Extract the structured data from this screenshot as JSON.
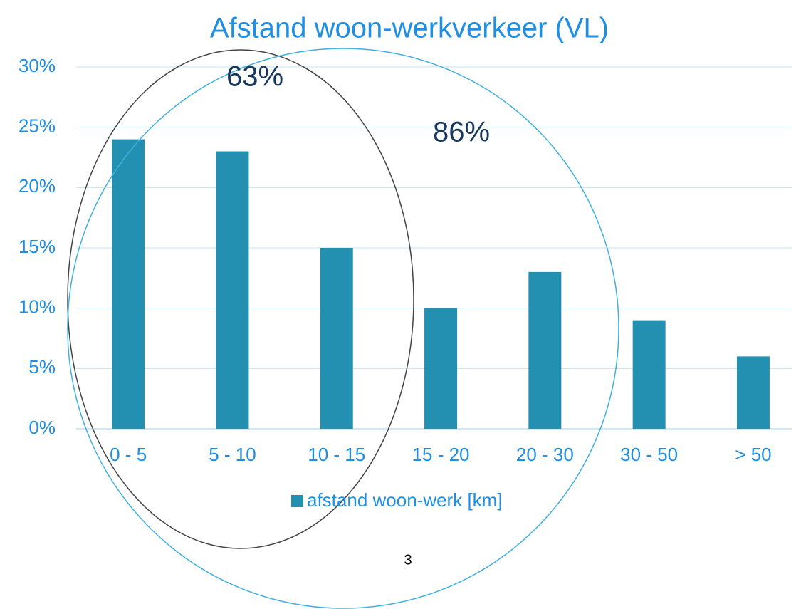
{
  "chart_data": {
    "type": "bar",
    "title": "Afstand woon-werkverkeer (VL)",
    "categories": [
      "0 - 5",
      "5 - 10",
      "10 - 15",
      "15 - 20",
      "20 - 30",
      "30 - 50",
      "> 50"
    ],
    "series": [
      {
        "name": "afstand woon-werk [km]",
        "color": "#2390b1",
        "values": [
          24,
          23,
          15,
          10,
          13,
          9,
          6
        ]
      }
    ],
    "ylim": [
      0,
      30
    ],
    "yticks": [
      {
        "value": 0,
        "label": "0%"
      },
      {
        "value": 5,
        "label": "5%"
      },
      {
        "value": 10,
        "label": "10%"
      },
      {
        "value": 15,
        "label": "15%"
      },
      {
        "value": 20,
        "label": "20%"
      },
      {
        "value": 25,
        "label": "25%"
      },
      {
        "value": 30,
        "label": "30%"
      }
    ],
    "grid": true,
    "legend": "bottom",
    "annotations": [
      "63%",
      "86%"
    ]
  },
  "page_number": "3"
}
